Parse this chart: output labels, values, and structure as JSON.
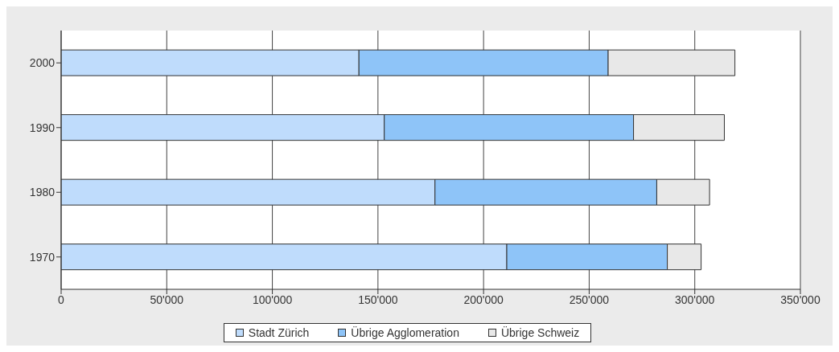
{
  "chart_data": {
    "type": "bar",
    "orientation": "horizontal",
    "stacked": true,
    "categories": [
      "2000",
      "1990",
      "1980",
      "1970"
    ],
    "series": [
      {
        "name": "Stadt Zürich",
        "color": "#bfdcfc",
        "values": [
          141000,
          153000,
          177000,
          211000
        ]
      },
      {
        "name": "Übrige Agglomeration",
        "color": "#8ec4f8",
        "values": [
          118000,
          118000,
          105000,
          76000
        ]
      },
      {
        "name": "Übrige Schweiz",
        "color": "#e8e8e8",
        "values": [
          60000,
          43000,
          25000,
          16000
        ]
      }
    ],
    "xlim": [
      0,
      350000
    ],
    "xticks": [
      {
        "value": 0,
        "label": "0"
      },
      {
        "value": 50000,
        "label": "50'000"
      },
      {
        "value": 100000,
        "label": "100'000"
      },
      {
        "value": 150000,
        "label": "150'000"
      },
      {
        "value": 200000,
        "label": "200'000"
      },
      {
        "value": 250000,
        "label": "250'000"
      },
      {
        "value": 300000,
        "label": "300'000"
      },
      {
        "value": 350000,
        "label": "350'000"
      }
    ],
    "grid": "x",
    "legend": "bottom"
  }
}
